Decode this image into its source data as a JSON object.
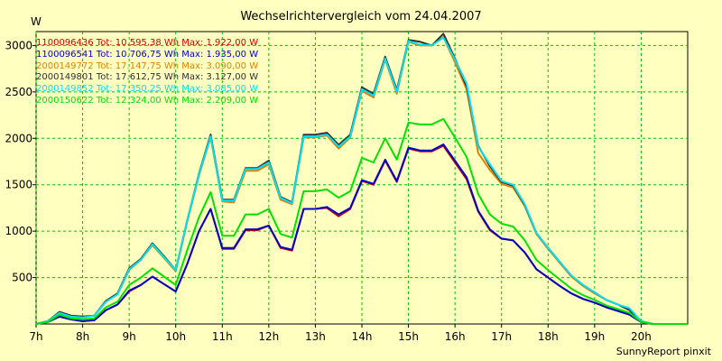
{
  "header": {
    "title": "Wechselrichtervergleich vom 24.04.2007",
    "unit": "W"
  },
  "footer": {
    "credit": "SunnyReport pinxit"
  },
  "colors": {
    "background": "#ffffc0",
    "grid": "#00c000",
    "axis": "#000000"
  },
  "legend": [
    {
      "label": "1100096436 Tot: 10.595,38 Wh Max: 1.922,00 W",
      "color": "#cc0000"
    },
    {
      "label": "1100096541 Tot: 10.706,75 Wh Max: 1.935,00 W",
      "color": "#0000c8"
    },
    {
      "label": "2000149772 Tot: 17.147,75 Wh Max: 3.090,00 W",
      "color": "#e08000"
    },
    {
      "label": "2000149801 Tot: 17.612,75 Wh Max: 3.127,00 W",
      "color": "#303030"
    },
    {
      "label": "2000149852 Tot: 17.350,25 Wh Max: 3.085,00 W",
      "color": "#00e0f0"
    },
    {
      "label": "2000150622 Tot: 12.324,00 Wh Max: 2.209,00 W",
      "color": "#00e000"
    }
  ],
  "chart_data": {
    "type": "line",
    "title": "Wechselrichtervergleich vom 24.04.2007",
    "ylabel": "W",
    "xlim": [
      7,
      21
    ],
    "ylim": [
      0,
      3150
    ],
    "grid": true,
    "legend_position": "top-left",
    "x_ticks": [
      {
        "value": 7,
        "label": "7h"
      },
      {
        "value": 8,
        "label": "8h"
      },
      {
        "value": 9,
        "label": "9h"
      },
      {
        "value": 10,
        "label": "10h"
      },
      {
        "value": 11,
        "label": "11h"
      },
      {
        "value": 12,
        "label": "12h"
      },
      {
        "value": 13,
        "label": "13h"
      },
      {
        "value": 14,
        "label": "14h"
      },
      {
        "value": 15,
        "label": "15h"
      },
      {
        "value": 16,
        "label": "16h"
      },
      {
        "value": 17,
        "label": "17h"
      },
      {
        "value": 18,
        "label": "18h"
      },
      {
        "value": 19,
        "label": "19h"
      },
      {
        "value": 20,
        "label": "20h"
      }
    ],
    "y_ticks": [
      {
        "value": 500,
        "label": "500"
      },
      {
        "value": 1000,
        "label": "1000"
      },
      {
        "value": 1500,
        "label": "1500"
      },
      {
        "value": 2000,
        "label": "2000"
      },
      {
        "value": 2500,
        "label": "2500"
      },
      {
        "value": 3000,
        "label": "3000"
      }
    ],
    "x": [
      7,
      7.25,
      7.5,
      7.75,
      8,
      8.25,
      8.5,
      8.75,
      9,
      9.25,
      9.5,
      9.75,
      10,
      10.25,
      10.5,
      10.75,
      11,
      11.25,
      11.5,
      11.75,
      12,
      12.25,
      12.5,
      12.75,
      13,
      13.25,
      13.5,
      13.75,
      14,
      14.25,
      14.5,
      14.75,
      15,
      15.25,
      15.5,
      15.75,
      16,
      16.25,
      16.5,
      16.75,
      17,
      17.25,
      17.5,
      17.75,
      18,
      18.25,
      18.5,
      18.75,
      19,
      19.25,
      19.5,
      19.75,
      20,
      20.25,
      20.5,
      20.75,
      21
    ],
    "series": [
      {
        "name": "1100096436",
        "values": [
          0,
          20,
          80,
          50,
          30,
          40,
          150,
          210,
          350,
          420,
          510,
          430,
          350,
          650,
          1000,
          1240,
          810,
          810,
          1010,
          1010,
          1060,
          820,
          790,
          1240,
          1240,
          1250,
          1160,
          1240,
          1540,
          1500,
          1760,
          1530,
          1890,
          1860,
          1860,
          1920,
          1740,
          1560,
          1210,
          1010,
          920,
          900,
          770,
          590,
          500,
          410,
          330,
          270,
          230,
          180,
          140,
          100,
          20,
          0,
          0,
          0,
          0
        ]
      },
      {
        "name": "1100096541",
        "values": [
          0,
          20,
          80,
          50,
          30,
          40,
          150,
          210,
          360,
          420,
          510,
          430,
          350,
          650,
          1000,
          1240,
          820,
          820,
          1020,
          1020,
          1060,
          830,
          800,
          1240,
          1240,
          1260,
          1180,
          1250,
          1550,
          1510,
          1770,
          1540,
          1900,
          1870,
          1870,
          1935,
          1760,
          1580,
          1220,
          1020,
          920,
          900,
          770,
          590,
          500,
          410,
          330,
          270,
          230,
          180,
          140,
          100,
          20,
          0,
          0,
          0,
          0
        ]
      },
      {
        "name": "2000149772",
        "values": [
          0,
          30,
          120,
          80,
          70,
          90,
          240,
          320,
          580,
          690,
          850,
          710,
          570,
          1110,
          1600,
          2010,
          1320,
          1310,
          1650,
          1650,
          1720,
          1340,
          1290,
          2010,
          2010,
          2030,
          1890,
          2010,
          2510,
          2440,
          2850,
          2480,
          3040,
          3000,
          3000,
          3090,
          2820,
          2530,
          1840,
          1660,
          1510,
          1470,
          1270,
          970,
          810,
          660,
          510,
          410,
          330,
          260,
          210,
          150,
          30,
          0,
          0,
          0,
          0
        ]
      },
      {
        "name": "2000149801",
        "values": [
          0,
          30,
          130,
          90,
          80,
          90,
          250,
          330,
          600,
          700,
          870,
          730,
          580,
          1120,
          1620,
          2040,
          1340,
          1340,
          1680,
          1680,
          1760,
          1370,
          1310,
          2040,
          2040,
          2060,
          1930,
          2040,
          2550,
          2480,
          2880,
          2520,
          3060,
          3040,
          3000,
          3127,
          2860,
          2560,
          1920,
          1700,
          1530,
          1490,
          1280,
          980,
          820,
          670,
          520,
          420,
          340,
          260,
          210,
          150,
          30,
          0,
          0,
          0,
          0
        ]
      },
      {
        "name": "2000149852",
        "values": [
          0,
          30,
          120,
          80,
          70,
          90,
          240,
          320,
          590,
          690,
          860,
          720,
          580,
          1120,
          1610,
          2020,
          1330,
          1330,
          1670,
          1670,
          1740,
          1360,
          1300,
          2020,
          2020,
          2040,
          1910,
          2020,
          2530,
          2460,
          2860,
          2500,
          3050,
          3010,
          3000,
          3085,
          2850,
          2590,
          1910,
          1720,
          1540,
          1500,
          1290,
          980,
          820,
          670,
          520,
          420,
          340,
          260,
          210,
          170,
          30,
          0,
          0,
          0,
          0
        ]
      },
      {
        "name": "2000150622",
        "values": [
          0,
          20,
          100,
          60,
          50,
          60,
          180,
          240,
          420,
          500,
          600,
          510,
          420,
          800,
          1150,
          1420,
          950,
          950,
          1180,
          1180,
          1240,
          970,
          930,
          1430,
          1430,
          1450,
          1360,
          1430,
          1790,
          1740,
          2000,
          1770,
          2170,
          2150,
          2150,
          2209,
          2010,
          1800,
          1400,
          1180,
          1080,
          1050,
          900,
          690,
          580,
          480,
          380,
          310,
          260,
          200,
          160,
          120,
          20,
          0,
          0,
          0,
          0
        ]
      }
    ]
  }
}
